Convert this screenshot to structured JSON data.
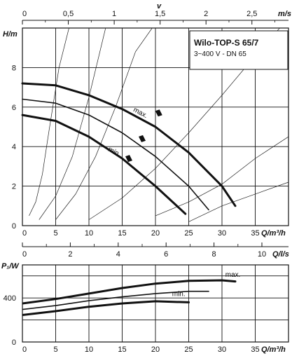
{
  "title_box": {
    "title": "Wilo-TOP-S 65/7",
    "subtitle": "3~400 V - DN 65"
  },
  "top_axis": {
    "label": "v",
    "unit": "m/s",
    "ticks": [
      "0",
      "0,5",
      "1",
      "1,5",
      "2",
      "2,5",
      "3"
    ]
  },
  "mid_axis": {
    "unit": "Q/l/s",
    "ticks": [
      "0",
      "2",
      "4",
      "6",
      "8",
      "10"
    ]
  },
  "chart_data": [
    {
      "type": "line",
      "xlabel": "Q/m³/h",
      "ylabel": "H/m",
      "xlim": [
        0,
        40
      ],
      "ylim": [
        0,
        10
      ],
      "x_ticks": [
        "0",
        "5",
        "10",
        "15",
        "20",
        "25",
        "30",
        "35"
      ],
      "y_ticks": [
        "0",
        "2",
        "4",
        "6",
        "8"
      ],
      "series": [
        {
          "name": "max.",
          "x": [
            0,
            5,
            10,
            15,
            20,
            25,
            30,
            32
          ],
          "y": [
            7.2,
            7.1,
            6.6,
            5.9,
            5.0,
            3.7,
            2.0,
            1.0
          ]
        },
        {
          "name": "",
          "x": [
            0,
            5,
            10,
            15,
            20,
            25,
            28
          ],
          "y": [
            6.4,
            6.2,
            5.6,
            4.7,
            3.5,
            2.0,
            0.8
          ]
        },
        {
          "name": "min.",
          "x": [
            0,
            5,
            10,
            15,
            20,
            24.5
          ],
          "y": [
            5.6,
            5.3,
            4.5,
            3.4,
            2.0,
            0.6
          ]
        }
      ],
      "system_curves": [
        {
          "x": [
            1,
            2,
            3,
            4,
            5.5,
            7
          ],
          "y": [
            0.5,
            1.2,
            2.6,
            4.8,
            8.0,
            10
          ]
        },
        {
          "x": [
            2.5,
            5,
            7.5,
            10,
            12.5
          ],
          "y": [
            0.3,
            1.5,
            3.5,
            6.5,
            10
          ]
        },
        {
          "x": [
            5,
            8,
            11,
            14,
            17,
            19.5
          ],
          "y": [
            0.3,
            1.6,
            3.5,
            6.0,
            8.8,
            10
          ]
        },
        {
          "x": [
            10,
            15,
            20,
            25,
            30,
            35,
            40
          ],
          "y": [
            0.3,
            1.4,
            2.9,
            4.7,
            6.6,
            8.6,
            10.5
          ]
        },
        {
          "x": [
            20,
            25,
            30,
            35,
            40
          ],
          "y": [
            0.5,
            1.2,
            2.1,
            3.4,
            4.5
          ]
        },
        {
          "x": [
            25,
            30,
            35,
            40
          ],
          "y": [
            0.2,
            1.0,
            1.6,
            2.2
          ]
        }
      ],
      "markers": [
        {
          "x": 20.5,
          "y": 5.7
        },
        {
          "x": 18.0,
          "y": 4.4
        },
        {
          "x": 16.0,
          "y": 3.4
        }
      ]
    },
    {
      "type": "line",
      "xlabel": "Q/m³/h",
      "ylabel": "P₁/W",
      "xlim": [
        0,
        40
      ],
      "ylim": [
        0,
        700
      ],
      "x_ticks": [
        "0",
        "5",
        "10",
        "15",
        "20",
        "25",
        "30",
        "35"
      ],
      "y_ticks": [
        "0",
        "400"
      ],
      "series": [
        {
          "name": "max.",
          "x": [
            0,
            5,
            10,
            15,
            20,
            25,
            30,
            32
          ],
          "y": [
            350,
            390,
            440,
            490,
            530,
            555,
            560,
            550
          ]
        },
        {
          "name": "",
          "x": [
            0,
            5,
            10,
            15,
            20,
            25,
            28
          ],
          "y": [
            295,
            330,
            375,
            410,
            440,
            460,
            460
          ]
        },
        {
          "name": "min.",
          "x": [
            0,
            5,
            10,
            15,
            20,
            25
          ],
          "y": [
            245,
            280,
            320,
            350,
            370,
            360
          ]
        }
      ]
    }
  ]
}
